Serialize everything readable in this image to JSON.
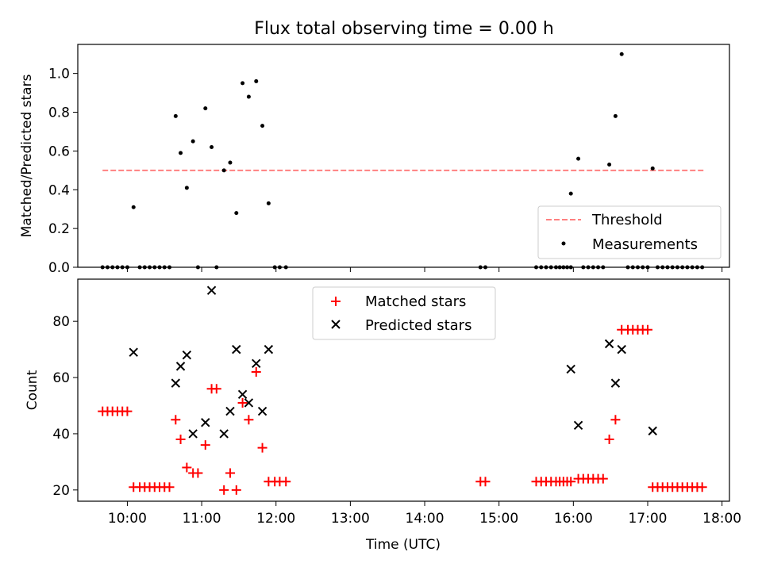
{
  "title": "Flux total observing time = 0.00 h",
  "colors": {
    "threshold": "#ff8080",
    "measurements": "#000000",
    "matched": "#ff0000",
    "predicted": "#000000"
  },
  "chart_data": [
    {
      "type": "scatter",
      "ylabel": "Matched/Predicted stars",
      "xlim": [
        "09:20",
        "18:06"
      ],
      "ylim": [
        0,
        1.15
      ],
      "yticks": [
        0.0,
        0.2,
        0.4,
        0.6,
        0.8,
        1.0
      ],
      "ytick_labels": [
        "0.0",
        "0.2",
        "0.4",
        "0.6",
        "0.8",
        "1.0"
      ],
      "legend_position": "bottom-right",
      "series": [
        {
          "name": "Threshold",
          "kind": "dashed-line",
          "x": [
            "09:40",
            "17:45"
          ],
          "y": [
            0.5,
            0.5
          ]
        },
        {
          "name": "Measurements",
          "kind": "dots",
          "points": [
            [
              "09:40",
              0
            ],
            [
              "09:44",
              0
            ],
            [
              "09:48",
              0
            ],
            [
              "09:52",
              0
            ],
            [
              "09:56",
              0
            ],
            [
              "10:00",
              0
            ],
            [
              "10:05",
              0.31
            ],
            [
              "10:10",
              0
            ],
            [
              "10:14",
              0
            ],
            [
              "10:18",
              0
            ],
            [
              "10:22",
              0
            ],
            [
              "10:26",
              0
            ],
            [
              "10:30",
              0
            ],
            [
              "10:34",
              0
            ],
            [
              "10:39",
              0.78
            ],
            [
              "10:43",
              0.59
            ],
            [
              "10:48",
              0.41
            ],
            [
              "10:53",
              0.65
            ],
            [
              "10:57",
              0
            ],
            [
              "11:03",
              0.82
            ],
            [
              "11:08",
              0.62
            ],
            [
              "11:12",
              0
            ],
            [
              "11:18",
              0.5
            ],
            [
              "11:23",
              0.54
            ],
            [
              "11:28",
              0.28
            ],
            [
              "11:33",
              0.95
            ],
            [
              "11:38",
              0.88
            ],
            [
              "11:44",
              0.96
            ],
            [
              "11:49",
              0.73
            ],
            [
              "11:54",
              0.33
            ],
            [
              "11:59",
              0
            ],
            [
              "12:03",
              0
            ],
            [
              "12:08",
              0
            ],
            [
              "14:45",
              0
            ],
            [
              "14:49",
              0
            ],
            [
              "15:30",
              0
            ],
            [
              "15:34",
              0
            ],
            [
              "15:38",
              0
            ],
            [
              "15:42",
              0
            ],
            [
              "15:46",
              0
            ],
            [
              "15:49",
              0
            ],
            [
              "15:52",
              0
            ],
            [
              "15:55",
              0
            ],
            [
              "15:58",
              0
            ],
            [
              "15:58",
              0.38
            ],
            [
              "16:04",
              0.56
            ],
            [
              "16:08",
              0
            ],
            [
              "16:12",
              0
            ],
            [
              "16:16",
              0
            ],
            [
              "16:20",
              0
            ],
            [
              "16:24",
              0
            ],
            [
              "16:29",
              0.53
            ],
            [
              "16:34",
              0.78
            ],
            [
              "16:39",
              1.1
            ],
            [
              "16:44",
              0
            ],
            [
              "16:48",
              0
            ],
            [
              "16:52",
              0
            ],
            [
              "16:56",
              0
            ],
            [
              "17:00",
              0
            ],
            [
              "17:04",
              0.51
            ],
            [
              "17:08",
              0
            ],
            [
              "17:12",
              0
            ],
            [
              "17:16",
              0
            ],
            [
              "17:20",
              0
            ],
            [
              "17:24",
              0
            ],
            [
              "17:28",
              0
            ],
            [
              "17:32",
              0
            ],
            [
              "17:36",
              0
            ],
            [
              "17:40",
              0
            ],
            [
              "17:44",
              0
            ]
          ]
        }
      ]
    },
    {
      "type": "scatter",
      "xlabel": "Time (UTC)",
      "ylabel": "Count",
      "xlim": [
        "09:20",
        "18:06"
      ],
      "ylim": [
        16,
        95
      ],
      "xticks": [
        "10:00",
        "11:00",
        "12:00",
        "13:00",
        "14:00",
        "15:00",
        "16:00",
        "17:00",
        "18:00"
      ],
      "yticks": [
        20,
        40,
        60,
        80
      ],
      "ytick_labels": [
        "20",
        "40",
        "60",
        "80"
      ],
      "legend_position": "top-center",
      "series": [
        {
          "name": "Matched stars",
          "kind": "plus",
          "points": [
            [
              "09:40",
              48
            ],
            [
              "09:44",
              48
            ],
            [
              "09:48",
              48
            ],
            [
              "09:52",
              48
            ],
            [
              "09:56",
              48
            ],
            [
              "10:00",
              48
            ],
            [
              "10:05",
              21
            ],
            [
              "10:10",
              21
            ],
            [
              "10:14",
              21
            ],
            [
              "10:18",
              21
            ],
            [
              "10:22",
              21
            ],
            [
              "10:26",
              21
            ],
            [
              "10:30",
              21
            ],
            [
              "10:34",
              21
            ],
            [
              "10:39",
              45
            ],
            [
              "10:43",
              38
            ],
            [
              "10:48",
              28
            ],
            [
              "10:53",
              26
            ],
            [
              "10:57",
              26
            ],
            [
              "11:03",
              36
            ],
            [
              "11:08",
              56
            ],
            [
              "11:12",
              56
            ],
            [
              "11:18",
              20
            ],
            [
              "11:23",
              26
            ],
            [
              "11:28",
              20
            ],
            [
              "11:33",
              51
            ],
            [
              "11:38",
              45
            ],
            [
              "11:44",
              62
            ],
            [
              "11:49",
              35
            ],
            [
              "11:54",
              23
            ],
            [
              "11:59",
              23
            ],
            [
              "12:03",
              23
            ],
            [
              "12:08",
              23
            ],
            [
              "14:45",
              23
            ],
            [
              "14:49",
              23
            ],
            [
              "15:30",
              23
            ],
            [
              "15:34",
              23
            ],
            [
              "15:38",
              23
            ],
            [
              "15:42",
              23
            ],
            [
              "15:46",
              23
            ],
            [
              "15:49",
              23
            ],
            [
              "15:52",
              23
            ],
            [
              "15:55",
              23
            ],
            [
              "15:58",
              23
            ],
            [
              "16:04",
              24
            ],
            [
              "16:08",
              24
            ],
            [
              "16:12",
              24
            ],
            [
              "16:16",
              24
            ],
            [
              "16:20",
              24
            ],
            [
              "16:24",
              24
            ],
            [
              "16:29",
              38
            ],
            [
              "16:34",
              45
            ],
            [
              "16:39",
              77
            ],
            [
              "16:44",
              77
            ],
            [
              "16:48",
              77
            ],
            [
              "16:52",
              77
            ],
            [
              "16:56",
              77
            ],
            [
              "17:00",
              77
            ],
            [
              "17:04",
              21
            ],
            [
              "17:08",
              21
            ],
            [
              "17:12",
              21
            ],
            [
              "17:16",
              21
            ],
            [
              "17:20",
              21
            ],
            [
              "17:24",
              21
            ],
            [
              "17:28",
              21
            ],
            [
              "17:32",
              21
            ],
            [
              "17:36",
              21
            ],
            [
              "17:40",
              21
            ],
            [
              "17:44",
              21
            ]
          ]
        },
        {
          "name": "Predicted stars",
          "kind": "x",
          "points": [
            [
              "10:05",
              69
            ],
            [
              "10:39",
              58
            ],
            [
              "10:43",
              64
            ],
            [
              "10:48",
              68
            ],
            [
              "10:53",
              40
            ],
            [
              "11:03",
              44
            ],
            [
              "11:08",
              91
            ],
            [
              "11:18",
              40
            ],
            [
              "11:23",
              48
            ],
            [
              "11:28",
              70
            ],
            [
              "11:33",
              54
            ],
            [
              "11:38",
              51
            ],
            [
              "11:44",
              65
            ],
            [
              "11:49",
              48
            ],
            [
              "11:54",
              70
            ],
            [
              "15:58",
              63
            ],
            [
              "16:04",
              43
            ],
            [
              "16:29",
              72
            ],
            [
              "16:34",
              58
            ],
            [
              "16:39",
              70
            ],
            [
              "17:04",
              41
            ]
          ]
        }
      ]
    }
  ]
}
